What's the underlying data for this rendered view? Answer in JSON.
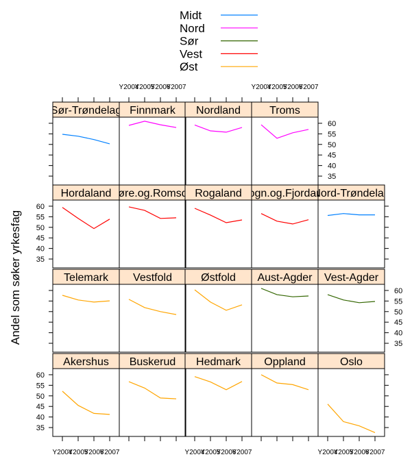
{
  "chart_data": {
    "type": "line",
    "layout": "trellis 5 columns x 4 rows",
    "ylabel": "Andel som søker yrkesfag",
    "xlabel": "",
    "x": [
      "Y2004",
      "Y2005",
      "Y2006",
      "Y2007"
    ],
    "yticks": [
      35,
      40,
      45,
      50,
      55,
      60
    ],
    "ylim": [
      30.8,
      62.9
    ],
    "grid": false,
    "legend_position": "top",
    "strip_color": "#ffe5cc",
    "legend": [
      {
        "name": "Midt",
        "color": "#0080ff"
      },
      {
        "name": "Nord",
        "color": "#ff00ff"
      },
      {
        "name": "Sør",
        "color": "#336600"
      },
      {
        "name": "Vest",
        "color": "#ff0000"
      },
      {
        "name": "Øst",
        "color": "#ffa500"
      }
    ],
    "panels": [
      [
        {
          "name": "Sør-Trøndelag",
          "group": "Midt",
          "values": [
            54.8,
            53.9,
            52.3,
            50.3
          ]
        },
        {
          "name": "Finnmark",
          "group": "Nord",
          "values": [
            59.0,
            61.0,
            59.3,
            58.0
          ]
        },
        {
          "name": "Nordland",
          "group": "Nord",
          "values": [
            59.2,
            56.4,
            55.8,
            58.0
          ]
        },
        {
          "name": "Troms",
          "group": "Nord",
          "values": [
            59.3,
            52.9,
            55.5,
            57.1
          ]
        }
      ],
      [
        {
          "name": "Hordaland",
          "group": "Vest",
          "values": [
            59.4,
            54.2,
            49.4,
            53.9
          ]
        },
        {
          "name": "Møre.og.Romsdal",
          "group": "Vest",
          "values": [
            59.7,
            58.0,
            54.2,
            54.5
          ]
        },
        {
          "name": "Rogaland",
          "group": "Vest",
          "values": [
            59.0,
            55.8,
            52.2,
            53.5
          ]
        },
        {
          "name": "Sogn.og.Fjordane",
          "group": "Vest",
          "values": [
            56.5,
            52.9,
            51.6,
            53.6
          ]
        },
        {
          "name": "Nord-Trøndelag",
          "group": "Midt",
          "values": [
            55.6,
            56.5,
            55.9,
            55.9
          ]
        }
      ],
      [
        {
          "name": "Telemark",
          "group": "Øst",
          "values": [
            57.7,
            55.5,
            54.5,
            55.1
          ]
        },
        {
          "name": "Vestfold",
          "group": "Øst",
          "values": [
            55.8,
            51.9,
            50.0,
            48.6
          ]
        },
        {
          "name": "Østfold",
          "group": "Øst",
          "values": [
            60.3,
            54.5,
            50.6,
            53.2
          ]
        },
        {
          "name": "Aust-Agder",
          "group": "Sør",
          "values": [
            61.0,
            58.0,
            57.0,
            57.4
          ]
        },
        {
          "name": "Vest-Agder",
          "group": "Sør",
          "values": [
            58.0,
            55.5,
            54.2,
            54.8
          ]
        }
      ],
      [
        {
          "name": "Akershus",
          "group": "Øst",
          "values": [
            52.2,
            45.5,
            41.7,
            41.2
          ]
        },
        {
          "name": "Buskerud",
          "group": "Øst",
          "values": [
            56.7,
            53.7,
            49.0,
            48.6
          ]
        },
        {
          "name": "Hedmark",
          "group": "Øst",
          "values": [
            59.1,
            56.6,
            52.9,
            56.8
          ]
        },
        {
          "name": "Oppland",
          "group": "Øst",
          "values": [
            60.0,
            56.1,
            55.3,
            52.9
          ]
        },
        {
          "name": "Oslo",
          "group": "Øst",
          "values": [
            46.1,
            37.8,
            35.8,
            32.6
          ]
        }
      ]
    ]
  }
}
